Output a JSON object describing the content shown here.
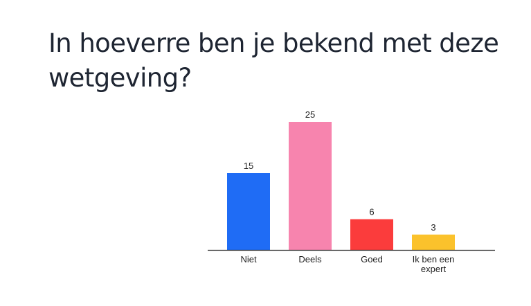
{
  "question": {
    "title": "In hoeverre ben je bekend met deze wetgeving?"
  },
  "chart_data": {
    "type": "bar",
    "categories": [
      "Niet",
      "Deels",
      "Goed",
      "Ik ben een expert"
    ],
    "category_lines": [
      [
        "Niet"
      ],
      [
        "Deels"
      ],
      [
        "Goed"
      ],
      [
        "Ik ben een",
        "expert"
      ]
    ],
    "values": [
      15,
      25,
      6,
      3
    ],
    "colors": [
      "#1f6cf5",
      "#f784ae",
      "#fb3c3c",
      "#fbc22c"
    ],
    "title": "In hoeverre ben je bekend met deze wetgeving?",
    "xlabel": "",
    "ylabel": "",
    "grid": false,
    "legend": "none"
  }
}
